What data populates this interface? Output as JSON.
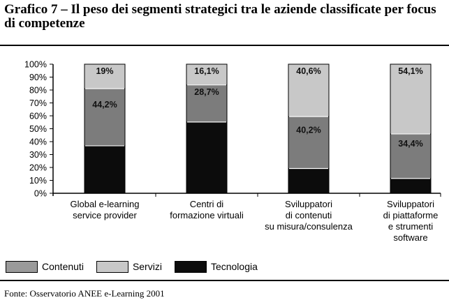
{
  "header": {
    "title": "Grafico 7 – Il peso dei segmenti strategici tra le aziende classificate per focus di competenze"
  },
  "footer": {
    "source": "Fonte: Osservatorio ANEE e-Learning 2001"
  },
  "legend": {
    "items": [
      {
        "label": "Contenuti",
        "color": "#9a9a9a"
      },
      {
        "label": "Servizi",
        "color": "#c8c8c8"
      },
      {
        "label": "Tecnologia",
        "color": "#0c0c0c"
      }
    ]
  },
  "chart_data": {
    "type": "bar",
    "stacked": true,
    "categories": [
      [
        "Global e-learning",
        "service provider"
      ],
      [
        "Centri di",
        "formazione virtuali"
      ],
      [
        "Sviluppatori",
        "di contenuti",
        "su misura/consulenza"
      ],
      [
        "Sviluppatori",
        "di piattaforme",
        "e strumenti",
        "software"
      ]
    ],
    "series": [
      {
        "name": "Tecnologia",
        "color": "#0c0c0c",
        "values": [
          36.8,
          55.2,
          19.2,
          11.5
        ]
      },
      {
        "name": "Contenuti",
        "color": "#7c7c7c",
        "values": [
          44.2,
          28.7,
          40.2,
          34.4
        ]
      },
      {
        "name": "Servizi",
        "color": "#c8c8c8",
        "values": [
          19.0,
          16.1,
          40.6,
          54.1
        ]
      }
    ],
    "value_labels": [
      [
        null,
        "44,2%",
        "19%"
      ],
      [
        null,
        "28,7%",
        "16,1%"
      ],
      [
        null,
        "40,2%",
        "40,6%"
      ],
      [
        null,
        "34,4%",
        "54,1%"
      ]
    ],
    "ylim": [
      0,
      100
    ],
    "yticks": [
      "0%",
      "10%",
      "20%",
      "30%",
      "40%",
      "50%",
      "60%",
      "70%",
      "80%",
      "90%",
      "100%"
    ],
    "grid": false,
    "legend_position": "bottom-left"
  }
}
